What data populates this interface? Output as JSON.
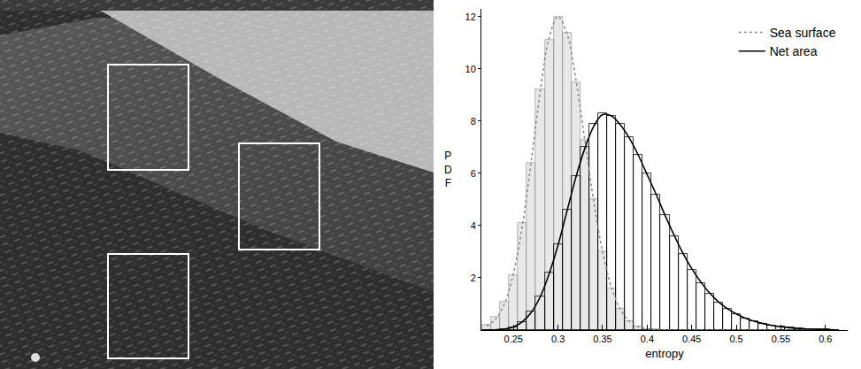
{
  "chart_data": {
    "type": "histogram",
    "xlabel": "entropy",
    "ylabel": "PDF",
    "xlim": [
      0.214,
      0.625
    ],
    "ylim": [
      0,
      12.3
    ],
    "xticks": [
      0.25,
      0.3,
      0.35,
      0.4,
      0.45,
      0.5,
      0.55,
      0.6
    ],
    "yticks": [
      2,
      4,
      6,
      8,
      10,
      12
    ],
    "legend": "top right",
    "grid": false,
    "bins": [
      0.215,
      0.225,
      0.235,
      0.245,
      0.255,
      0.265,
      0.275,
      0.285,
      0.295,
      0.305,
      0.315,
      0.325,
      0.335,
      0.345,
      0.355,
      0.365,
      0.375,
      0.385,
      0.395,
      0.405,
      0.415,
      0.425,
      0.435,
      0.445,
      0.455,
      0.465,
      0.475,
      0.485,
      0.495,
      0.505,
      0.515,
      0.525,
      0.535,
      0.545,
      0.555,
      0.565,
      0.575,
      0.585,
      0.595,
      0.605,
      0.615
    ],
    "fit_x": [
      0.22,
      0.23,
      0.24,
      0.25,
      0.26,
      0.27,
      0.28,
      0.29,
      0.3,
      0.31,
      0.32,
      0.33,
      0.34,
      0.35,
      0.36,
      0.37,
      0.38,
      0.39,
      0.4,
      0.41,
      0.42,
      0.43,
      0.44,
      0.45,
      0.46,
      0.47,
      0.48,
      0.49,
      0.5,
      0.51,
      0.52,
      0.53,
      0.54,
      0.55,
      0.56,
      0.57,
      0.58,
      0.59,
      0.6,
      0.61
    ],
    "series": [
      {
        "name": "Sea surface",
        "color": "#8c8c8c",
        "line_style": "dotted",
        "values": [
          0.2,
          0.5,
          1.1,
          2.1,
          4.1,
          6.4,
          9.2,
          11.1,
          12.0,
          11.4,
          9.5,
          7.3,
          5.0,
          3.0,
          1.6,
          0.8,
          0.35,
          0.15,
          0.05,
          0.02,
          0,
          0,
          0,
          0,
          0,
          0,
          0,
          0,
          0,
          0,
          0,
          0,
          0,
          0,
          0,
          0,
          0,
          0,
          0,
          0
        ],
        "fit": [
          0.15,
          0.42,
          1.02,
          2.17,
          4.0,
          6.48,
          9.12,
          11.2,
          12.0,
          11.35,
          9.6,
          7.28,
          4.93,
          2.99,
          1.62,
          0.79,
          0.34,
          0.13,
          0.05,
          0.02,
          0,
          0,
          0,
          0,
          0,
          0,
          0,
          0,
          0,
          0,
          0,
          0,
          0,
          0,
          0,
          0,
          0,
          0,
          0,
          0
        ]
      },
      {
        "name": "Net area",
        "color": "#000000",
        "line_style": "solid",
        "values": [
          0,
          0.01,
          0.03,
          0.1,
          0.3,
          0.7,
          1.3,
          2.2,
          3.3,
          4.6,
          5.9,
          7.0,
          7.9,
          8.3,
          8.2,
          7.9,
          7.4,
          6.7,
          6.0,
          5.2,
          4.4,
          3.6,
          2.9,
          2.3,
          1.8,
          1.4,
          1.05,
          0.8,
          0.6,
          0.45,
          0.33,
          0.24,
          0.18,
          0.13,
          0.09,
          0.06,
          0.04,
          0.03,
          0.02,
          0.01
        ],
        "fit": [
          0,
          0.01,
          0.04,
          0.12,
          0.32,
          0.68,
          1.27,
          2.15,
          3.25,
          4.55,
          5.85,
          6.95,
          7.8,
          8.25,
          8.2,
          7.85,
          7.35,
          6.7,
          5.95,
          5.2,
          4.4,
          3.65,
          2.95,
          2.35,
          1.85,
          1.42,
          1.08,
          0.82,
          0.62,
          0.46,
          0.34,
          0.25,
          0.18,
          0.13,
          0.09,
          0.06,
          0.04,
          0.03,
          0.02,
          0.01
        ]
      }
    ]
  }
}
